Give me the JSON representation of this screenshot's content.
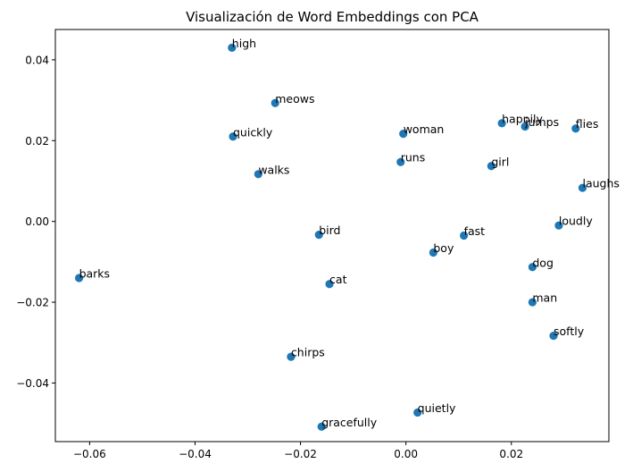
{
  "chart_data": {
    "type": "scatter",
    "title": "Visualización de Word Embeddings con PCA",
    "xlabel": "",
    "ylabel": "",
    "xlim": [
      -0.0665,
      0.0385
    ],
    "ylim": [
      -0.0545,
      0.0475
    ],
    "grid": false,
    "point_color": "#1f77b4",
    "x_ticks": [
      {
        "value": -0.06,
        "label": "−0.06"
      },
      {
        "value": -0.04,
        "label": "−0.04"
      },
      {
        "value": -0.02,
        "label": "−0.02"
      },
      {
        "value": 0.0,
        "label": "0.00"
      },
      {
        "value": 0.02,
        "label": "0.02"
      }
    ],
    "y_ticks": [
      {
        "value": 0.04,
        "label": "0.04"
      },
      {
        "value": 0.02,
        "label": "0.02"
      },
      {
        "value": 0.0,
        "label": "0.00"
      },
      {
        "value": -0.02,
        "label": "−0.02"
      },
      {
        "value": -0.04,
        "label": "−0.04"
      }
    ],
    "points": [
      {
        "label": "high",
        "x": -0.033,
        "y": 0.043
      },
      {
        "label": "meows",
        "x": -0.0248,
        "y": 0.0293
      },
      {
        "label": "quickly",
        "x": -0.0328,
        "y": 0.021
      },
      {
        "label": "walks",
        "x": -0.028,
        "y": 0.0117
      },
      {
        "label": "woman",
        "x": -0.0005,
        "y": 0.0217
      },
      {
        "label": "runs",
        "x": -0.001,
        "y": 0.0147
      },
      {
        "label": "happily",
        "x": 0.0182,
        "y": 0.0243
      },
      {
        "label": "jumps",
        "x": 0.0226,
        "y": 0.0235
      },
      {
        "label": "flies",
        "x": 0.0322,
        "y": 0.023
      },
      {
        "label": "girl",
        "x": 0.0162,
        "y": 0.0137
      },
      {
        "label": "laughs",
        "x": 0.0335,
        "y": 0.0083
      },
      {
        "label": "loudly",
        "x": 0.029,
        "y": -0.001
      },
      {
        "label": "bird",
        "x": -0.0165,
        "y": -0.0033
      },
      {
        "label": "fast",
        "x": 0.011,
        "y": -0.0035
      },
      {
        "label": "boy",
        "x": 0.0052,
        "y": -0.0077
      },
      {
        "label": "dog",
        "x": 0.024,
        "y": -0.0113
      },
      {
        "label": "barks",
        "x": -0.062,
        "y": -0.014
      },
      {
        "label": "cat",
        "x": -0.0145,
        "y": -0.0155
      },
      {
        "label": "man",
        "x": 0.024,
        "y": -0.02
      },
      {
        "label": "softly",
        "x": 0.028,
        "y": -0.0283
      },
      {
        "label": "chirps",
        "x": -0.0218,
        "y": -0.0335
      },
      {
        "label": "quietly",
        "x": 0.0022,
        "y": -0.0473
      },
      {
        "label": "gracefully",
        "x": -0.016,
        "y": -0.0508
      }
    ]
  }
}
